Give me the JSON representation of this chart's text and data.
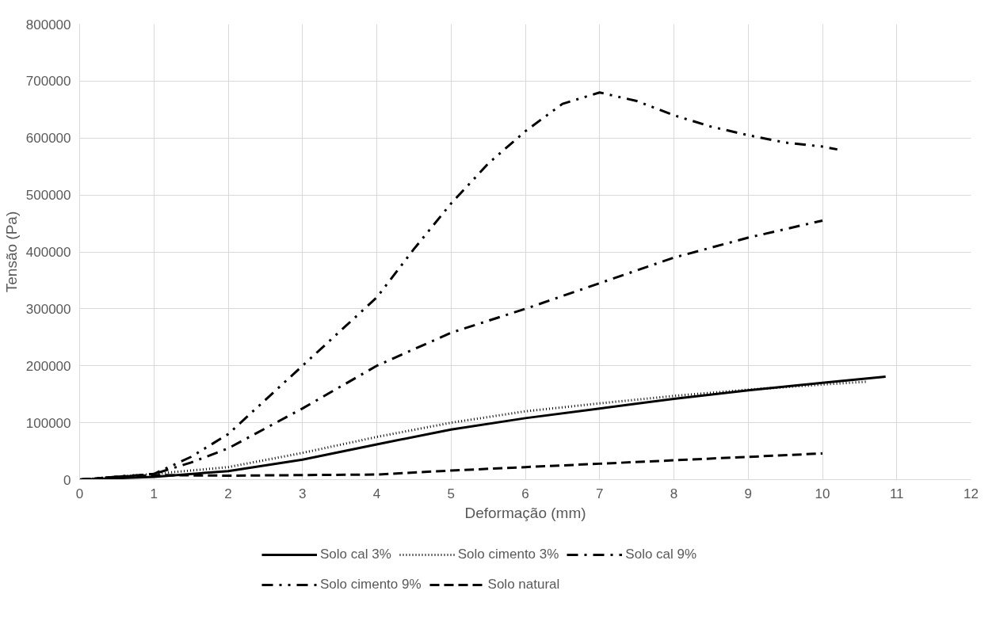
{
  "chart_data": {
    "type": "line",
    "xlabel": "Deformação (mm)",
    "ylabel": "Tensão (Pa)",
    "xlim": [
      0,
      12
    ],
    "xticks": [
      0,
      1,
      2,
      3,
      4,
      5,
      6,
      7,
      8,
      9,
      10,
      11,
      12
    ],
    "ylim": [
      0,
      800000
    ],
    "yticks": [
      0,
      100000,
      200000,
      300000,
      400000,
      500000,
      600000,
      700000,
      800000
    ],
    "grid": true,
    "legend": "bottom",
    "marker": "none",
    "series": [
      {
        "name": "Solo cal 3%",
        "color": "#000000",
        "line_style": "solid",
        "x": [
          0,
          1,
          2,
          3,
          4,
          5,
          6,
          7,
          8,
          9,
          10,
          10.85
        ],
        "values": [
          0,
          5000,
          15000,
          35000,
          62000,
          88000,
          108000,
          125000,
          142000,
          157000,
          170000,
          181000
        ]
      },
      {
        "name": "Solo cimento 3%",
        "color": "#000000",
        "line_style": "dotted",
        "x": [
          0,
          1,
          2,
          3,
          4,
          5,
          6,
          7,
          8,
          9,
          10,
          10.6
        ],
        "values": [
          0,
          10000,
          22000,
          47000,
          75000,
          100000,
          120000,
          134000,
          147000,
          158000,
          167000,
          172000
        ]
      },
      {
        "name": "Solo cal 9%",
        "color": "#000000",
        "line_style": "dashdot",
        "x": [
          0,
          1,
          1.5,
          2,
          3,
          4,
          5,
          6,
          7,
          8,
          9,
          10
        ],
        "values": [
          0,
          10000,
          30000,
          55000,
          125000,
          200000,
          258000,
          300000,
          345000,
          390000,
          425000,
          455000
        ]
      },
      {
        "name": "Solo cimento 9%",
        "color": "#000000",
        "line_style": "dashdotdot",
        "x": [
          0,
          1,
          1.5,
          2,
          3,
          3.5,
          4,
          4.5,
          5,
          5.5,
          6,
          6.5,
          7,
          7.5,
          8,
          8.5,
          9,
          9.5,
          10,
          10.2
        ],
        "values": [
          0,
          10000,
          40000,
          80000,
          200000,
          260000,
          320000,
          405000,
          485000,
          555000,
          612000,
          660000,
          680000,
          665000,
          640000,
          620000,
          605000,
          592000,
          585000,
          580000
        ]
      },
      {
        "name": "Solo natural",
        "color": "#000000",
        "line_style": "dashed",
        "x": [
          0,
          0.5,
          1,
          2,
          3,
          4,
          5,
          6,
          7,
          8,
          9,
          10
        ],
        "values": [
          0,
          5000,
          8000,
          7000,
          8000,
          9000,
          16000,
          22000,
          28000,
          34000,
          40000,
          46000
        ]
      }
    ]
  }
}
